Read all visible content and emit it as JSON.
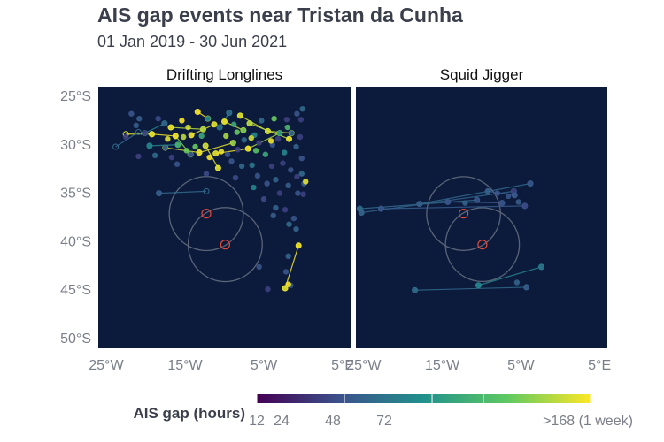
{
  "title": "AIS gap events near Tristan da Cunha",
  "subtitle": "01 Jan 2019 - 30 Jun 2021",
  "colors": {
    "ocean": "#0c1a3c",
    "zone_outline": "#5a6478",
    "island_outline": "#e04a3a",
    "scale": [
      "#440154",
      "#3b528b",
      "#21918c",
      "#5ec962",
      "#fde725"
    ]
  },
  "chart_data": {
    "type": "scatter",
    "xlim": [
      -26,
      6
    ],
    "ylim": [
      -51,
      -24
    ],
    "x_ticks": [
      "25°W",
      "15°W",
      "5°W",
      "5°E"
    ],
    "x_tick_values": [
      -25,
      -15,
      -5,
      5
    ],
    "y_ticks": [
      "25°S",
      "30°S",
      "35°S",
      "40°S",
      "45°S",
      "50°S"
    ],
    "y_tick_values": [
      -25,
      -30,
      -35,
      -40,
      -45,
      -50
    ],
    "islands": [
      {
        "lon": -12.3,
        "lat": -37.1
      },
      {
        "lon": -9.9,
        "lat": -40.3
      }
    ],
    "legend": {
      "title": "AIS gap (hours)",
      "tick_labels": [
        "12",
        "24",
        "48",
        "72",
        ">168 (1 week)"
      ],
      "tick_values": [
        12,
        24,
        48,
        72,
        168
      ]
    },
    "panels": [
      {
        "name": "Drifting Longlines",
        "points": [
          [
            -22.5,
            -29.2,
            20
          ],
          [
            -21.8,
            -26.8,
            24
          ],
          [
            -21.2,
            -28.0,
            26
          ],
          [
            -20.8,
            -27.3,
            26
          ],
          [
            -20.1,
            -28.8,
            20
          ],
          [
            -19.2,
            -28.9,
            150
          ],
          [
            -18.4,
            -27.3,
            22
          ],
          [
            -17.6,
            -27.8,
            28
          ],
          [
            -16.8,
            -28.2,
            160
          ],
          [
            -16.2,
            -29.1,
            170
          ],
          [
            -15.4,
            -27.5,
            165
          ],
          [
            -14.6,
            -28.2,
            140
          ],
          [
            -14.2,
            -29.0,
            160
          ],
          [
            -13.4,
            -26.6,
            165
          ],
          [
            -12.7,
            -28.4,
            125
          ],
          [
            -12.1,
            -27.3,
            40
          ],
          [
            -11.3,
            -27.9,
            150
          ],
          [
            -10.6,
            -28.2,
            30
          ],
          [
            -10.0,
            -27.6,
            160
          ],
          [
            -9.4,
            -26.7,
            30
          ],
          [
            -8.8,
            -27.9,
            60
          ],
          [
            -8.0,
            -27.0,
            150
          ],
          [
            -7.6,
            -28.5,
            100
          ],
          [
            -6.8,
            -27.8,
            130
          ],
          [
            -6.2,
            -29.0,
            40
          ],
          [
            -5.3,
            -27.5,
            30
          ],
          [
            -4.5,
            -28.6,
            140
          ],
          [
            -3.7,
            -27.3,
            90
          ],
          [
            -3.0,
            -28.8,
            50
          ],
          [
            -2.1,
            -27.4,
            20
          ],
          [
            -1.5,
            -28.8,
            30
          ],
          [
            -0.8,
            -26.8,
            24
          ],
          [
            -0.3,
            -27.4,
            20
          ],
          [
            -0.1,
            -26.3,
            30
          ],
          [
            -19.5,
            -30.1,
            40
          ],
          [
            -18.8,
            -31.1,
            30
          ],
          [
            -17.5,
            -30.3,
            28
          ],
          [
            -16.7,
            -31.3,
            20
          ],
          [
            -15.9,
            -30.0,
            70
          ],
          [
            -15.2,
            -29.2,
            130
          ],
          [
            -14.3,
            -31.0,
            24
          ],
          [
            -13.7,
            -30.2,
            90
          ],
          [
            -13.2,
            -30.8,
            160
          ],
          [
            -12.4,
            -30.1,
            140
          ],
          [
            -11.9,
            -31.3,
            165
          ],
          [
            -11.1,
            -30.9,
            150
          ],
          [
            -10.4,
            -30.7,
            155
          ],
          [
            -9.6,
            -31.0,
            24
          ],
          [
            -8.9,
            -29.8,
            110
          ],
          [
            -8.3,
            -30.5,
            20
          ],
          [
            -7.5,
            -29.5,
            30
          ],
          [
            -7.0,
            -30.4,
            165
          ],
          [
            -6.0,
            -30.6,
            80
          ],
          [
            -5.6,
            -29.8,
            20
          ],
          [
            -4.8,
            -31.0,
            60
          ],
          [
            -3.9,
            -30.0,
            24
          ],
          [
            -3.2,
            -29.4,
            20
          ],
          [
            -2.4,
            -30.8,
            40
          ],
          [
            -1.8,
            -29.4,
            160
          ],
          [
            -0.9,
            -30.2,
            28
          ],
          [
            -0.4,
            -29.2,
            20
          ],
          [
            -0.2,
            -31.4,
            24
          ],
          [
            -17.2,
            -29.4,
            150
          ],
          [
            -12.9,
            -29.1,
            60
          ],
          [
            -9.8,
            -29.1,
            120
          ],
          [
            -6.6,
            -29.3,
            140
          ],
          [
            -4.1,
            -29.6,
            160
          ],
          [
            -10.8,
            -32.4,
            150
          ],
          [
            -9.1,
            -31.7,
            24
          ],
          [
            -7.8,
            -32.2,
            30
          ],
          [
            -6.5,
            -32.1,
            35
          ],
          [
            -5.8,
            -33.2,
            24
          ],
          [
            -4.0,
            -32.2,
            20
          ],
          [
            -3.5,
            -33.6,
            28
          ],
          [
            -2.6,
            -31.9,
            20
          ],
          [
            -1.6,
            -32.6,
            24
          ],
          [
            -0.8,
            -33.3,
            20
          ],
          [
            -0.2,
            -33.0,
            30
          ],
          [
            0.1,
            -34.0,
            26
          ],
          [
            -8.6,
            -33.4,
            22
          ],
          [
            -6.3,
            -34.4,
            40
          ],
          [
            -4.6,
            -34.0,
            24
          ],
          [
            -3.0,
            -35.0,
            20
          ],
          [
            -1.9,
            -34.2,
            26
          ],
          [
            -0.7,
            -35.0,
            24
          ],
          [
            0.0,
            -35.1,
            20
          ],
          [
            -5.0,
            -35.6,
            22
          ],
          [
            -3.5,
            -36.5,
            28
          ],
          [
            -2.3,
            -36.7,
            20
          ],
          [
            -1.2,
            -37.6,
            24
          ],
          [
            -1.8,
            -38.2,
            30
          ],
          [
            -0.9,
            -38.7,
            28
          ],
          [
            -3.8,
            -37.3,
            26
          ],
          [
            -20.9,
            -31.2,
            20
          ],
          [
            -16.0,
            -32.0,
            24
          ],
          [
            -12.3,
            -33.0,
            22
          ],
          [
            -5.6,
            -42.6,
            24
          ],
          [
            -4.5,
            -44.9,
            20
          ],
          [
            -2.2,
            -43.1,
            24
          ],
          [
            -1.6,
            -44.5,
            26
          ],
          [
            -1.9,
            -41.5,
            28
          ],
          [
            -1.9,
            -44.4,
            165
          ],
          [
            -2.3,
            -44.8,
            150
          ],
          [
            -0.6,
            -40.4,
            160
          ],
          [
            -18.3,
            -35.0,
            26
          ],
          [
            0.3,
            -33.8,
            150
          ],
          [
            -8.4,
            -28.7,
            90
          ],
          [
            -2.0,
            -28.2,
            70
          ],
          [
            -14.8,
            -30.6,
            90
          ]
        ],
        "tracks": [
          [
            -22.5,
            -28.9,
            -19.2,
            -28.9,
            150
          ],
          [
            -19.2,
            -28.9,
            -16.2,
            -29.1,
            160
          ],
          [
            -16.8,
            -28.2,
            -12.7,
            -28.4,
            125
          ],
          [
            -14.2,
            -29.0,
            -11.3,
            -27.9,
            150
          ],
          [
            -10.0,
            -27.6,
            -7.6,
            -28.5,
            130
          ],
          [
            -8.0,
            -27.0,
            -4.5,
            -28.6,
            140
          ],
          [
            -6.8,
            -27.8,
            -1.8,
            -29.4,
            130
          ],
          [
            -13.2,
            -30.8,
            -8.9,
            -29.8,
            155
          ],
          [
            -11.1,
            -30.9,
            -7.0,
            -30.4,
            165
          ],
          [
            -7.0,
            -30.4,
            -3.0,
            -28.8,
            120
          ],
          [
            -4.5,
            -28.6,
            -1.5,
            -28.8,
            140
          ],
          [
            -17.5,
            -30.3,
            -13.2,
            -30.8,
            150
          ],
          [
            -13.4,
            -26.6,
            -12.1,
            -27.3,
            165
          ],
          [
            -19.5,
            -30.1,
            -15.9,
            -30.0,
            40
          ],
          [
            -12.4,
            -30.1,
            -10.8,
            -32.4,
            150
          ],
          [
            -20.1,
            -28.8,
            -17.6,
            -27.8,
            40
          ],
          [
            -16.2,
            -29.1,
            -14.3,
            -31.0,
            110
          ],
          [
            -2.3,
            -44.8,
            -0.6,
            -40.4,
            160
          ],
          [
            -18.3,
            -35.0,
            -12.3,
            -34.8,
            30
          ],
          [
            -23.8,
            -30.2,
            -20.9,
            -28.7,
            30
          ],
          [
            -10.6,
            -28.2,
            -9.4,
            -26.7,
            40
          ]
        ]
      },
      {
        "name": "Squid Jigger",
        "points": [
          [
            -10.6,
            -35.7,
            24
          ],
          [
            -9.2,
            -34.8,
            28
          ],
          [
            -8.0,
            -35.0,
            24
          ],
          [
            -5.9,
            -34.8,
            20
          ],
          [
            -5.3,
            -35.9,
            26
          ],
          [
            -7.4,
            -36.0,
            24
          ],
          [
            -4.5,
            -36.3,
            22
          ],
          [
            -3.8,
            -34.0,
            24
          ],
          [
            -5.8,
            -35.2,
            26
          ],
          [
            -6.6,
            -35.3,
            24
          ],
          [
            -25.5,
            -36.6,
            30
          ],
          [
            -25.3,
            -37.0,
            28
          ],
          [
            -22.8,
            -36.6,
            24
          ],
          [
            -17.9,
            -36.1,
            26
          ],
          [
            -14.3,
            -35.9,
            24
          ],
          [
            -12.1,
            -36.0,
            28
          ],
          [
            -18.5,
            -45.0,
            30
          ],
          [
            -10.4,
            -44.5,
            40
          ],
          [
            -5.5,
            -44.2,
            28
          ],
          [
            -4.3,
            -44.7,
            26
          ],
          [
            -2.4,
            -42.6,
            34
          ]
        ],
        "tracks": [
          [
            -25.5,
            -36.6,
            -10.6,
            -35.7,
            30
          ],
          [
            -25.3,
            -37.0,
            -5.9,
            -34.8,
            28
          ],
          [
            -22.8,
            -36.6,
            -4.5,
            -36.3,
            26
          ],
          [
            -17.9,
            -36.1,
            -3.8,
            -34.0,
            30
          ],
          [
            -18.5,
            -45.0,
            -4.3,
            -44.7,
            30
          ],
          [
            -10.4,
            -44.5,
            -2.4,
            -42.6,
            40
          ],
          [
            -14.3,
            -35.9,
            -7.4,
            -36.0,
            24
          ],
          [
            -9.2,
            -34.8,
            -5.8,
            -35.2,
            24
          ]
        ]
      }
    ]
  }
}
